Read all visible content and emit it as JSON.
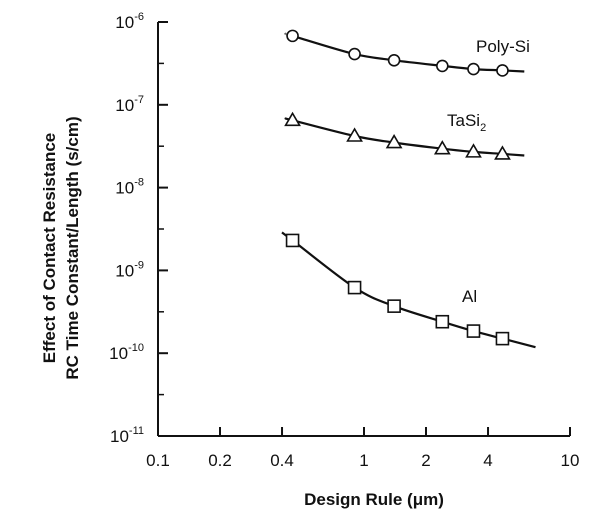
{
  "chart_data": {
    "type": "scatter",
    "xlabel": "Design Rule (μm)",
    "ylabel_lines": [
      "Effect of Contact Resistance",
      "RC Time Constant/Length (s/cm)"
    ],
    "x_scale": "log",
    "y_scale": "log",
    "xlim": [
      0.1,
      10
    ],
    "ylim": [
      1e-11,
      1e-06
    ],
    "x_ticks": [
      {
        "value": 0.1,
        "label": "0.1"
      },
      {
        "value": 0.2,
        "label": "0.2"
      },
      {
        "value": 0.4,
        "label": "0.4"
      },
      {
        "value": 1,
        "label": "1"
      },
      {
        "value": 2,
        "label": "2"
      },
      {
        "value": 4,
        "label": "4"
      },
      {
        "value": 10,
        "label": "10"
      }
    ],
    "y_ticks": [
      {
        "value": 1e-11,
        "base": "10",
        "exp": "-11"
      },
      {
        "value": 1e-10,
        "base": "10",
        "exp": "-10"
      },
      {
        "value": 1e-09,
        "base": "10",
        "exp": "-9"
      },
      {
        "value": 1e-08,
        "base": "10",
        "exp": "-8"
      },
      {
        "value": 1e-07,
        "base": "10",
        "exp": "-7"
      },
      {
        "value": 1e-06,
        "base": "10",
        "exp": "-6"
      }
    ],
    "grid": false,
    "legend": "none",
    "series": [
      {
        "name": "Poly-Si",
        "label_main": "Poly-Si",
        "label_sub": "",
        "marker": "circle",
        "points": [
          {
            "x": 0.45,
            "y": 6.8e-07
          },
          {
            "x": 0.9,
            "y": 4.1e-07
          },
          {
            "x": 1.4,
            "y": 3.45e-07
          },
          {
            "x": 2.4,
            "y": 2.95e-07
          },
          {
            "x": 3.4,
            "y": 2.7e-07
          },
          {
            "x": 4.7,
            "y": 2.6e-07
          }
        ],
        "curve_x": [
          0.42,
          6.0
        ]
      },
      {
        "name": "TaSi2",
        "label_main": "TaSi",
        "label_sub": "2",
        "marker": "triangle",
        "points": [
          {
            "x": 0.45,
            "y": 6.5e-08
          },
          {
            "x": 0.9,
            "y": 4.2e-08
          },
          {
            "x": 1.4,
            "y": 3.5e-08
          },
          {
            "x": 2.4,
            "y": 2.95e-08
          },
          {
            "x": 3.4,
            "y": 2.7e-08
          },
          {
            "x": 4.7,
            "y": 2.55e-08
          }
        ],
        "curve_x": [
          0.42,
          6.0
        ]
      },
      {
        "name": "Al",
        "label_main": "Al",
        "label_sub": "",
        "marker": "square",
        "points": [
          {
            "x": 0.45,
            "y": 2.3e-09
          },
          {
            "x": 0.9,
            "y": 6.2e-10
          },
          {
            "x": 1.4,
            "y": 3.7e-10
          },
          {
            "x": 2.4,
            "y": 2.4e-10
          },
          {
            "x": 3.4,
            "y": 1.85e-10
          },
          {
            "x": 4.7,
            "y": 1.5e-10
          }
        ],
        "curve_x": [
          0.4,
          6.8
        ]
      }
    ]
  }
}
